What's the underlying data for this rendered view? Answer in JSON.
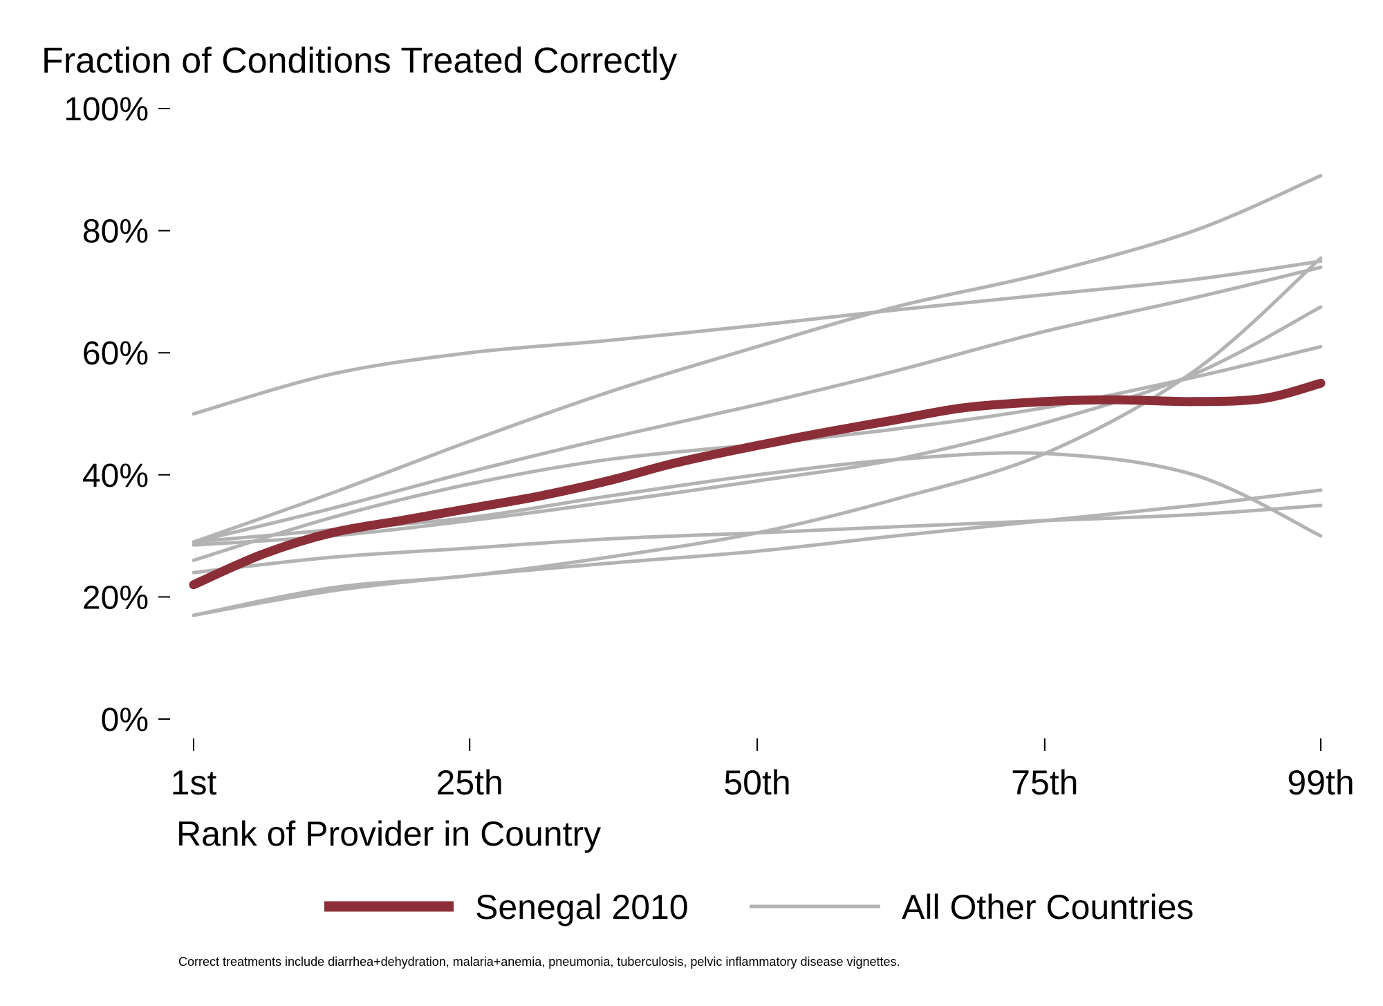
{
  "chart_data": {
    "type": "line",
    "title": "Fraction of Conditions Treated Correctly",
    "xlabel": "Rank of Provider in Country",
    "ylabel": "",
    "xlim": [
      1,
      99
    ],
    "ylim": [
      0,
      100
    ],
    "x_ticks": [
      {
        "value": 1,
        "label": "1st"
      },
      {
        "value": 25,
        "label": "25th"
      },
      {
        "value": 50,
        "label": "50th"
      },
      {
        "value": 75,
        "label": "75th"
      },
      {
        "value": 99,
        "label": "99th"
      }
    ],
    "y_ticks": [
      {
        "value": 0,
        "label": "0%"
      },
      {
        "value": 20,
        "label": "20%"
      },
      {
        "value": 40,
        "label": "40%"
      },
      {
        "value": 60,
        "label": "60%"
      },
      {
        "value": 80,
        "label": "80%"
      },
      {
        "value": 100,
        "label": "100%"
      }
    ],
    "grid": false,
    "legend_position": "bottom",
    "colors": {
      "highlight": "#8b2e37",
      "other": "#b3b3b3"
    },
    "legend": [
      {
        "label": "Senegal 2010",
        "series": "highlight"
      },
      {
        "label": "All Other Countries",
        "series": "other"
      }
    ],
    "series": [
      {
        "name": "Senegal 2010",
        "group": "highlight",
        "x": [
          1,
          7,
          13,
          19,
          25,
          31,
          37,
          43,
          50,
          56,
          62,
          68,
          75,
          81,
          88,
          94,
          99
        ],
        "y": [
          22,
          27,
          30.5,
          32.5,
          34.5,
          36.5,
          39,
          42,
          44.8,
          47,
          49,
          51,
          52,
          52.3,
          52,
          52.5,
          55
        ]
      },
      {
        "group": "other",
        "x": [
          1,
          13,
          25,
          37,
          50,
          62,
          75,
          88,
          99
        ],
        "y": [
          50,
          56.5,
          60,
          62,
          64.5,
          67,
          69.5,
          72,
          75
        ]
      },
      {
        "group": "other",
        "x": [
          1,
          13,
          25,
          37,
          50,
          62,
          75,
          88,
          99
        ],
        "y": [
          29,
          37,
          45.5,
          53.5,
          61,
          67.5,
          73,
          80,
          89
        ]
      },
      {
        "group": "other",
        "x": [
          1,
          13,
          25,
          37,
          50,
          62,
          75,
          88,
          99
        ],
        "y": [
          29,
          34.5,
          40.5,
          46,
          51.5,
          57,
          63.5,
          69,
          74
        ]
      },
      {
        "group": "other",
        "x": [
          1,
          13,
          25,
          37,
          50,
          62,
          75,
          88,
          99
        ],
        "y": [
          26,
          33,
          38.5,
          42.5,
          45,
          47.5,
          51,
          56,
          61
        ]
      },
      {
        "group": "other",
        "x": [
          1,
          13,
          25,
          37,
          50,
          62,
          75,
          88,
          99
        ],
        "y": [
          28.5,
          30,
          32.5,
          35.5,
          39,
          42.5,
          48.5,
          56.5,
          67.5
        ]
      },
      {
        "group": "other",
        "x": [
          1,
          13,
          25,
          37,
          50,
          62,
          75,
          88,
          99
        ],
        "y": [
          29,
          31,
          33,
          36.5,
          40,
          42.5,
          43.5,
          40,
          30
        ]
      },
      {
        "group": "other",
        "x": [
          1,
          13,
          25,
          37,
          50,
          62,
          75,
          88,
          99
        ],
        "y": [
          24,
          26.5,
          28,
          29.5,
          30.5,
          31.5,
          32.5,
          33.5,
          35
        ]
      },
      {
        "group": "other",
        "x": [
          1,
          13,
          25,
          37,
          50,
          62,
          75,
          88,
          99
        ],
        "y": [
          17,
          21.5,
          23.5,
          26.5,
          30.5,
          36,
          43.5,
          57,
          75.5
        ]
      },
      {
        "group": "other",
        "x": [
          1,
          13,
          25,
          37,
          50,
          62,
          75,
          88,
          99
        ],
        "y": [
          17,
          21,
          23.5,
          25.5,
          27.5,
          30,
          32.5,
          35,
          37.5
        ]
      }
    ],
    "note": "Correct treatments include diarrhea+dehydration, malaria+anemia, pneumonia, tuberculosis, pelvic inflammatory disease vignettes."
  }
}
